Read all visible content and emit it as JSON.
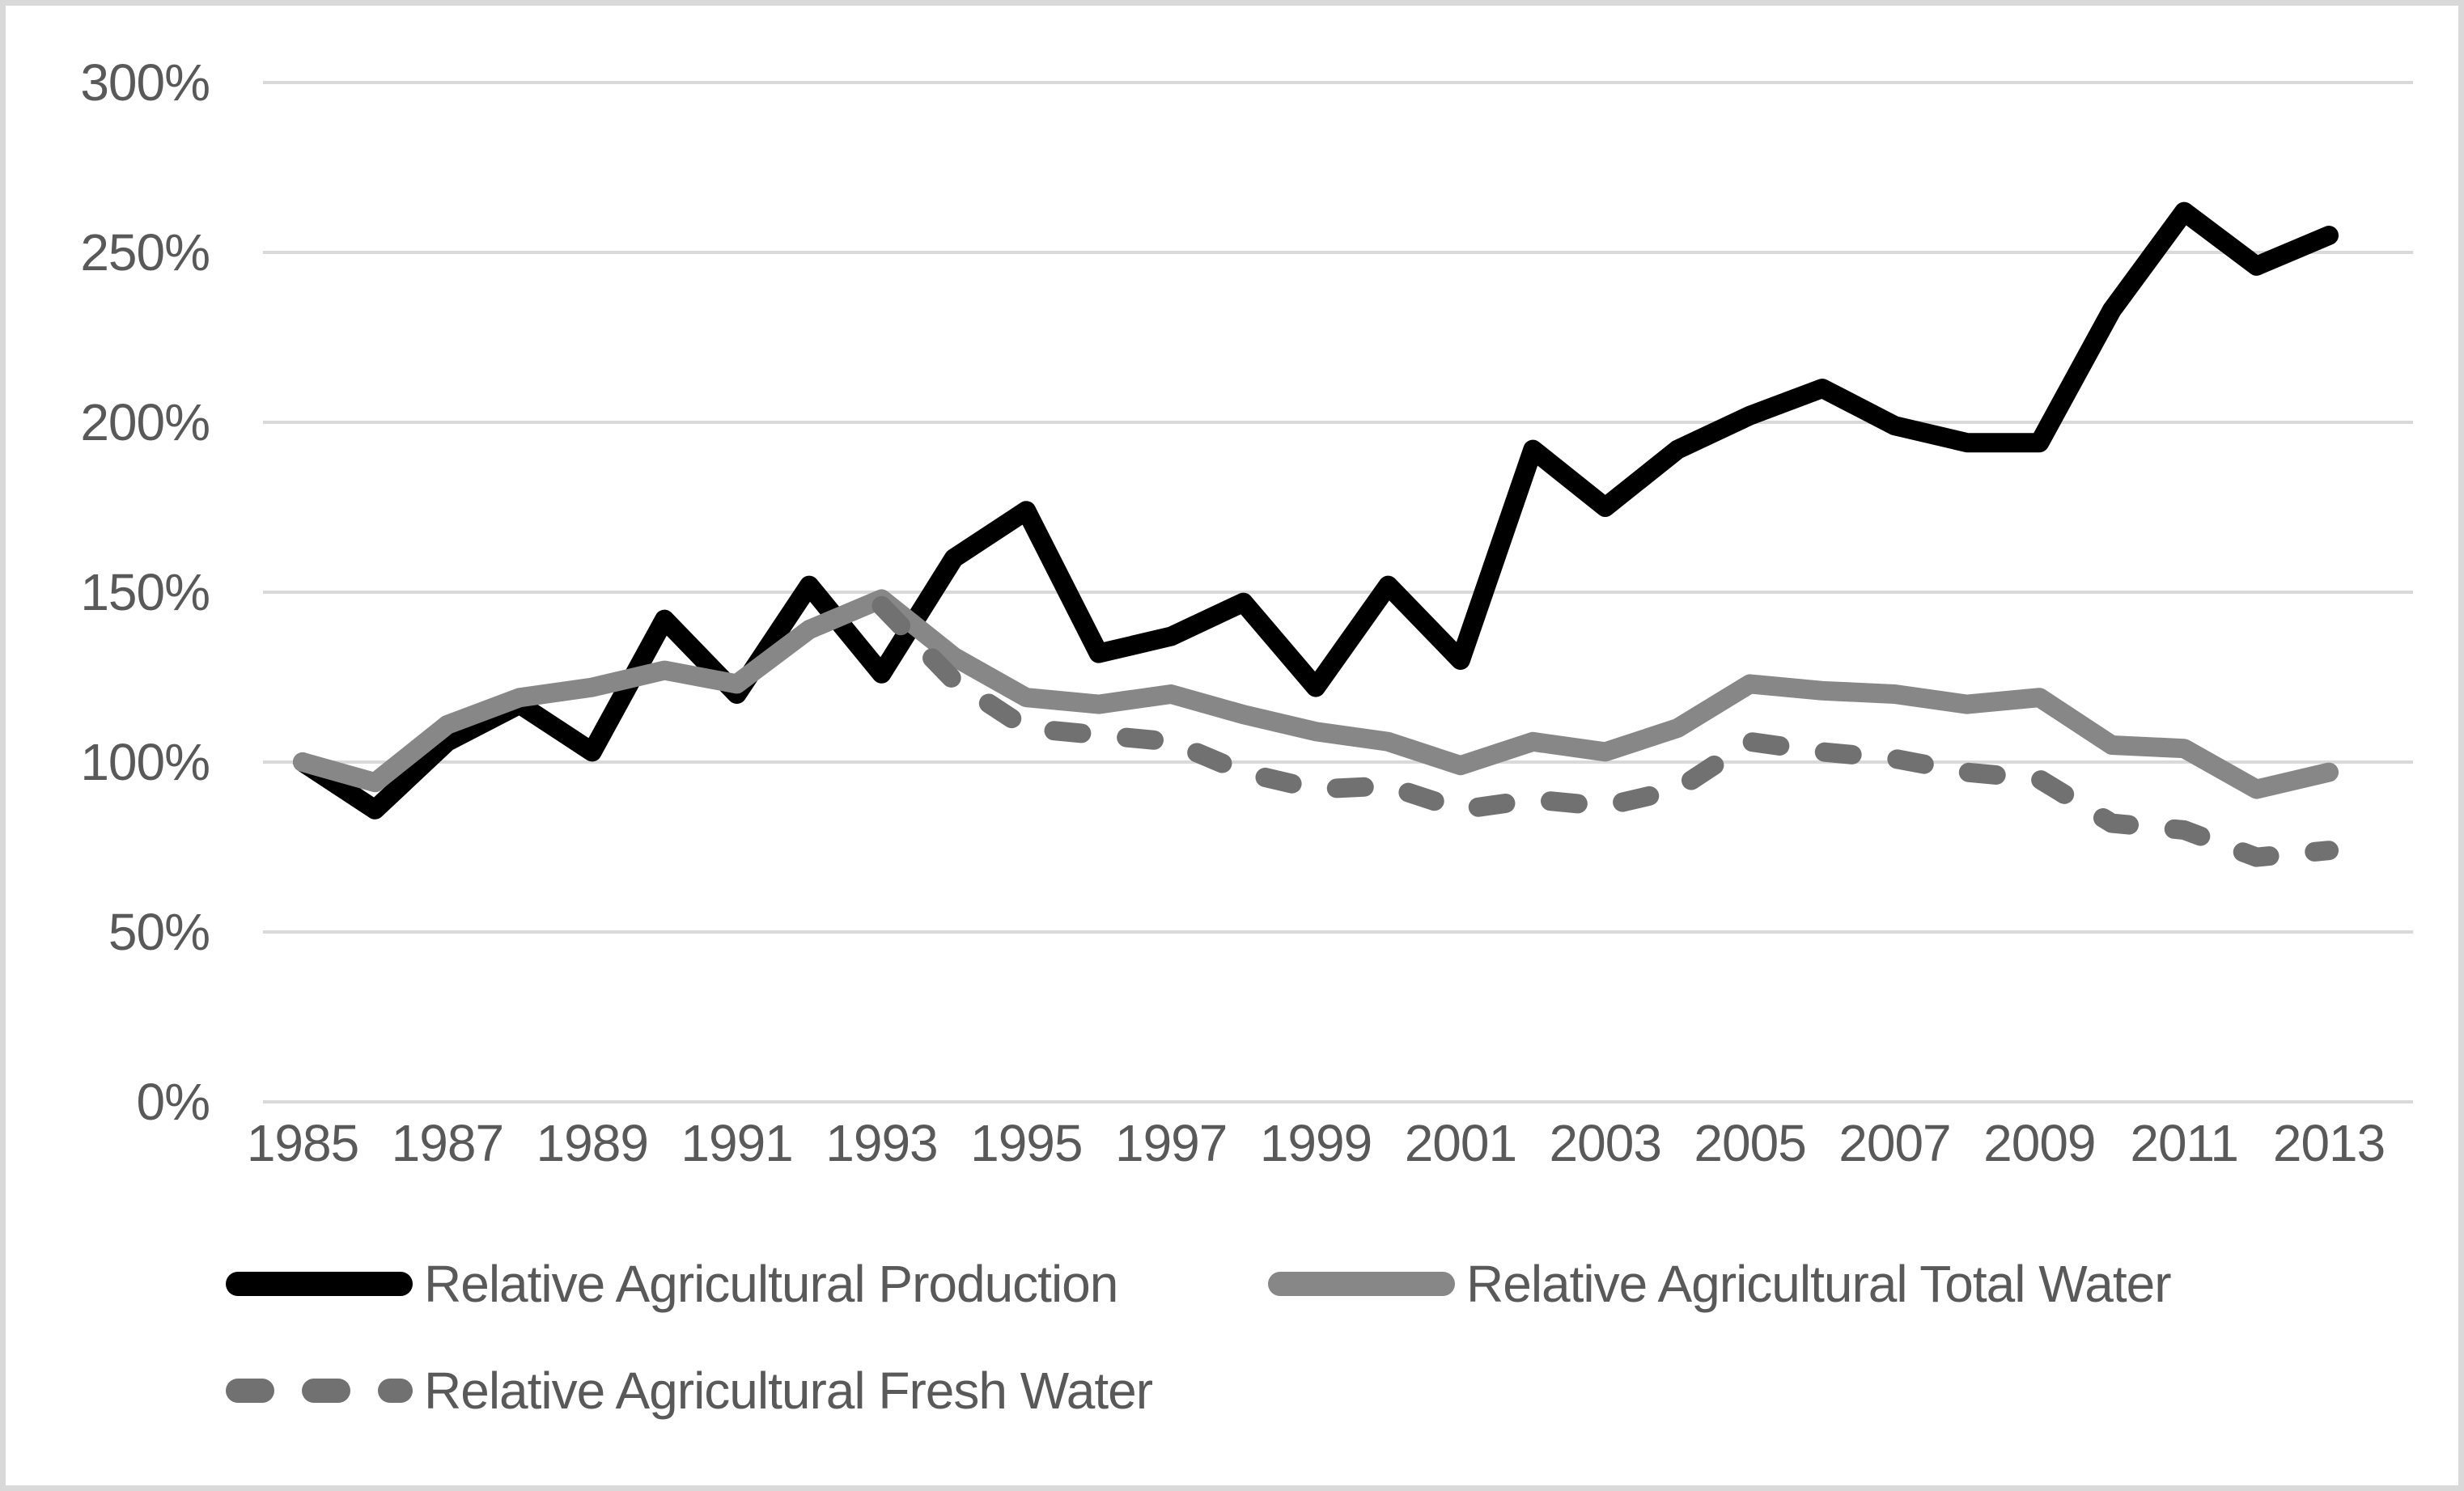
{
  "chart_data": {
    "type": "line",
    "title": "",
    "x": [
      1985,
      1986,
      1987,
      1988,
      1989,
      1990,
      1991,
      1992,
      1993,
      1994,
      1995,
      1996,
      1997,
      1998,
      1999,
      2000,
      2001,
      2002,
      2003,
      2004,
      2005,
      2006,
      2007,
      2008,
      2009,
      2010,
      2011,
      2012,
      2013
    ],
    "x_axis": {
      "tick_labels": [
        "1985",
        "1987",
        "1989",
        "1991",
        "1993",
        "1995",
        "1997",
        "1999",
        "2001",
        "2003",
        "2005",
        "2007",
        "2009",
        "2011",
        "2013"
      ],
      "tick_years": [
        1985,
        1987,
        1989,
        1991,
        1993,
        1995,
        1997,
        1999,
        2001,
        2003,
        2005,
        2007,
        2009,
        2011,
        2013
      ]
    },
    "y_axis": {
      "tick_labels": [
        "300%",
        "250%",
        "200%",
        "150%",
        "100%",
        "50%",
        "0%"
      ],
      "tick_values": [
        300,
        250,
        200,
        150,
        100,
        50,
        0
      ],
      "min": 0,
      "max": 300,
      "step": 50,
      "unit": "%"
    },
    "grid": true,
    "legend_position": "bottom-left",
    "series": [
      {
        "name": "Relative Agricultural Production",
        "color": "#000000",
        "style": "solid",
        "start_year": 1985,
        "values": [
          100,
          86,
          106,
          117,
          103,
          142,
          120,
          152,
          126,
          160,
          174,
          132,
          137,
          147,
          122,
          152,
          130,
          192,
          175,
          192,
          202,
          210,
          199,
          194,
          194,
          233,
          262,
          246,
          255
        ]
      },
      {
        "name": "Relative Agricultural Total Water",
        "color": "#878787",
        "style": "solid",
        "start_year": 1985,
        "values": [
          100,
          94,
          111,
          119,
          122,
          127,
          123,
          139,
          148,
          131,
          119,
          117,
          120,
          114,
          109,
          106,
          99,
          106,
          103,
          110,
          123,
          121,
          120,
          117,
          119,
          105,
          104,
          92,
          97
        ]
      },
      {
        "name": "Relative Agricultural Fresh Water",
        "color": "#717171",
        "style": "dashed",
        "start_year": 1993,
        "values": [
          146,
          124,
          110,
          108,
          106,
          97,
          92,
          93,
          86,
          89,
          87,
          92,
          106,
          103,
          101,
          97,
          95,
          82,
          80,
          72,
          74
        ]
      }
    ]
  },
  "colors": {
    "background": "#FFFFFF",
    "frame_border": "#D9D9D9",
    "gridline": "#D9D9D9",
    "tick_text": "#595959"
  }
}
